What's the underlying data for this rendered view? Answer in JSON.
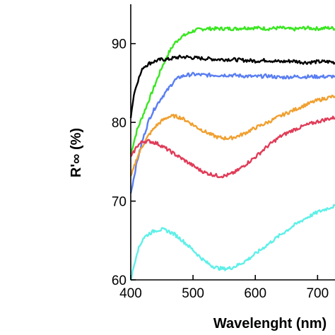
{
  "chart_data": {
    "type": "line",
    "xlabel": "Wavelenght (nm)",
    "ylabel": "R'∞ (%)",
    "xlim": [
      400,
      728
    ],
    "ylim": [
      60,
      95
    ],
    "xticks": [
      400,
      500,
      600,
      700
    ],
    "xtick_labels": [
      "400",
      "500",
      "600",
      "700"
    ],
    "yticks": [
      60,
      70,
      80,
      90
    ],
    "ytick_labels": [
      "60",
      "70",
      "80",
      "90"
    ],
    "grid": false,
    "series": [
      {
        "color": "#39e620",
        "x": [
          400,
          410,
          420,
          430,
          440,
          450,
          460,
          470,
          480,
          490,
          500,
          510,
          520,
          530,
          540,
          550,
          560,
          570,
          580,
          590,
          600,
          620,
          640,
          660,
          680,
          700,
          720,
          728
        ],
        "y": [
          76.0,
          79.0,
          81.0,
          83.0,
          85.0,
          87.0,
          88.7,
          90.0,
          90.8,
          91.2,
          91.6,
          91.8,
          91.9,
          91.9,
          91.9,
          91.9,
          91.9,
          91.9,
          92.0,
          92.0,
          92.0,
          91.9,
          92.0,
          91.8,
          92.0,
          91.9,
          92.0,
          91.9
        ]
      },
      {
        "color": "#000000",
        "x": [
          400,
          405,
          410,
          415,
          420,
          430,
          440,
          450,
          460,
          470,
          480,
          490,
          500,
          520,
          540,
          560,
          580,
          600,
          620,
          640,
          660,
          680,
          700,
          720,
          728
        ],
        "y": [
          80.7,
          83.5,
          85.0,
          86.0,
          87.0,
          87.5,
          87.8,
          88.0,
          88.0,
          88.2,
          88.3,
          88.3,
          88.2,
          88.1,
          88.0,
          88.0,
          87.9,
          87.8,
          87.9,
          87.7,
          87.8,
          87.6,
          87.7,
          87.7,
          87.6
        ]
      },
      {
        "color": "#5a7ef2",
        "x": [
          400,
          410,
          420,
          430,
          440,
          450,
          460,
          470,
          480,
          490,
          500,
          520,
          540,
          560,
          580,
          600,
          620,
          640,
          660,
          680,
          700,
          720,
          728
        ],
        "y": [
          71.0,
          75.0,
          78.0,
          80.5,
          82.0,
          83.2,
          84.2,
          85.3,
          85.8,
          86.0,
          86.1,
          86.0,
          86.0,
          86.0,
          85.9,
          85.8,
          85.9,
          85.7,
          85.8,
          85.8,
          85.8,
          85.8,
          85.9
        ]
      },
      {
        "color": "#f0a030",
        "x": [
          400,
          410,
          420,
          430,
          440,
          450,
          460,
          470,
          480,
          490,
          500,
          510,
          520,
          530,
          540,
          550,
          560,
          570,
          580,
          590,
          600,
          620,
          640,
          660,
          680,
          700,
          720,
          728
        ],
        "y": [
          73.0,
          75.5,
          77.2,
          78.5,
          79.5,
          80.2,
          80.7,
          80.8,
          80.6,
          80.2,
          79.7,
          79.2,
          78.8,
          78.4,
          78.1,
          78.0,
          78.0,
          78.2,
          78.5,
          78.9,
          79.3,
          80.0,
          80.8,
          81.5,
          82.2,
          82.8,
          83.2,
          83.3
        ]
      },
      {
        "color": "#e03c58",
        "x": [
          400,
          410,
          420,
          430,
          440,
          450,
          460,
          470,
          480,
          490,
          500,
          510,
          520,
          530,
          540,
          550,
          560,
          570,
          580,
          590,
          600,
          620,
          640,
          660,
          680,
          700,
          720,
          728
        ],
        "y": [
          75.5,
          77.0,
          77.6,
          77.6,
          77.4,
          77.0,
          76.5,
          76.0,
          75.5,
          75.0,
          74.5,
          74.0,
          73.6,
          73.4,
          73.2,
          73.2,
          73.4,
          73.8,
          74.4,
          75.0,
          75.6,
          77.0,
          78.2,
          79.0,
          79.6,
          80.1,
          80.5,
          80.6
        ]
      },
      {
        "color": "#5ef0e8",
        "x": [
          400,
          410,
          420,
          430,
          440,
          450,
          460,
          470,
          480,
          490,
          500,
          510,
          520,
          530,
          540,
          550,
          560,
          570,
          580,
          590,
          600,
          620,
          640,
          660,
          680,
          700,
          720,
          728
        ],
        "y": [
          60.0,
          63.5,
          65.3,
          65.9,
          66.3,
          66.4,
          66.2,
          65.8,
          65.2,
          64.5,
          63.8,
          63.0,
          62.3,
          61.8,
          61.5,
          61.4,
          61.5,
          61.8,
          62.2,
          62.7,
          63.3,
          64.5,
          65.7,
          66.8,
          67.8,
          68.6,
          69.2,
          69.4
        ]
      }
    ]
  }
}
